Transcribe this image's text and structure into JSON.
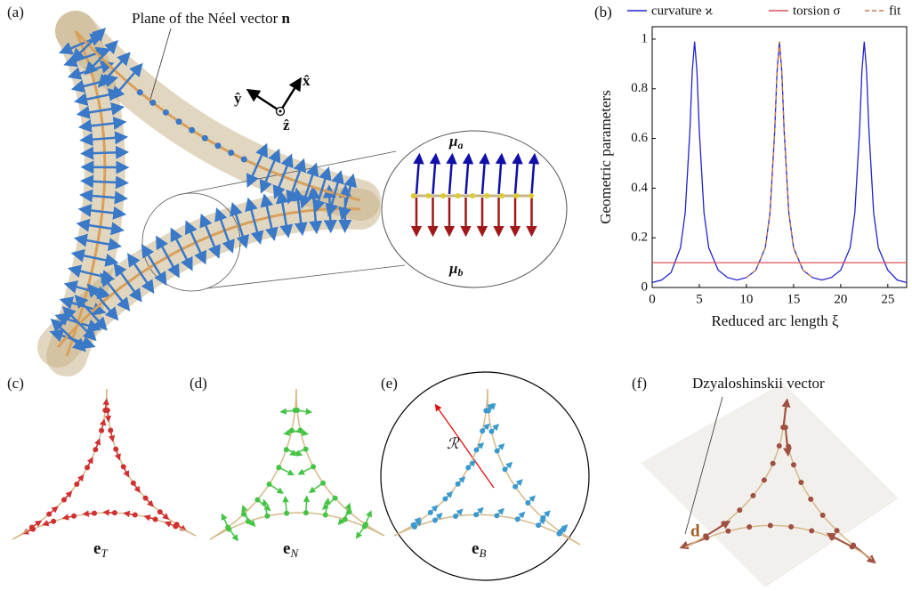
{
  "panel_labels": [
    "(a)",
    "(b)",
    "(c)",
    "(d)",
    "(e)",
    "(f)"
  ],
  "panel_a": {
    "annotation": {
      "text": "Plane of the Néel vector",
      "symbol": "n"
    },
    "axes": {
      "y": "ŷ",
      "x": "x̂",
      "z": "ẑ"
    },
    "inset": {
      "top": {
        "symbol": "μ",
        "subscript": "a"
      },
      "bottom": {
        "symbol": "μ",
        "subscript": "b"
      }
    }
  },
  "panel_c": {
    "label": {
      "symbol": "e",
      "subscript": "T"
    }
  },
  "panel_d": {
    "label": {
      "symbol": "e",
      "subscript": "N"
    }
  },
  "panel_e": {
    "label": {
      "symbol": "e",
      "subscript": "B"
    },
    "radius_label": "ℛ"
  },
  "panel_f": {
    "annotation": "Dzyaloshinskii vector",
    "label": "d"
  },
  "chart_data": {
    "type": "line",
    "x_label": "Reduced arc length ξ",
    "y_label": "Geometric parameters",
    "xlim": [
      0,
      27
    ],
    "ylim": [
      0,
      1.05
    ],
    "xticks": [
      0,
      5,
      10,
      15,
      20,
      25
    ],
    "yticks": [
      0,
      0.2,
      0.4,
      0.6,
      0.8,
      1
    ],
    "legend": "top",
    "series": [
      {
        "name": "curvature ϰ",
        "color": "#2222cc",
        "style": "solid",
        "x": [
          0,
          1,
          2,
          3,
          3.5,
          4,
          4.25,
          4.5,
          4.75,
          5,
          5.5,
          6,
          7,
          8,
          9,
          10,
          11,
          12,
          12.5,
          13,
          13.25,
          13.5,
          13.75,
          14,
          14.5,
          15,
          16,
          17,
          18,
          19,
          20,
          21,
          21.5,
          22,
          22.25,
          22.5,
          22.75,
          23,
          23.5,
          24,
          25,
          26,
          27
        ],
        "values": [
          0.02,
          0.03,
          0.06,
          0.16,
          0.3,
          0.63,
          0.87,
          0.99,
          0.87,
          0.63,
          0.3,
          0.16,
          0.07,
          0.04,
          0.03,
          0.04,
          0.07,
          0.16,
          0.3,
          0.63,
          0.87,
          0.99,
          0.87,
          0.63,
          0.3,
          0.16,
          0.07,
          0.04,
          0.03,
          0.04,
          0.07,
          0.16,
          0.3,
          0.63,
          0.87,
          0.99,
          0.87,
          0.63,
          0.3,
          0.16,
          0.07,
          0.03,
          0.02
        ]
      },
      {
        "name": "torsion σ",
        "color": "#e0505a",
        "style": "solid",
        "x": [
          0,
          27
        ],
        "values": [
          0.1,
          0.1
        ]
      },
      {
        "name": "fit",
        "color": "#c8784a",
        "style": "dashed",
        "x": [
          10,
          11,
          12,
          12.5,
          13,
          13.25,
          13.5,
          13.75,
          14,
          14.5,
          15,
          16,
          17
        ],
        "values": [
          0.04,
          0.07,
          0.16,
          0.3,
          0.63,
          0.87,
          0.99,
          0.87,
          0.63,
          0.3,
          0.16,
          0.07,
          0.04
        ]
      }
    ]
  }
}
